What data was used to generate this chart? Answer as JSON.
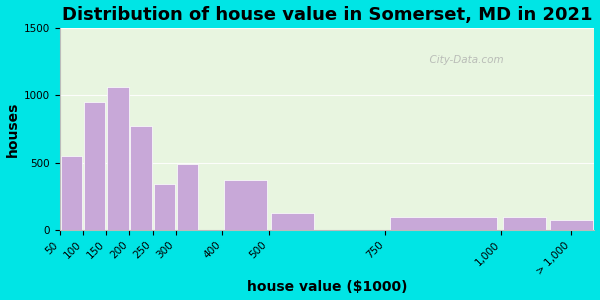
{
  "title": "Distribution of house value in Somerset, MD in 2021",
  "xlabel": "house value ($1000)",
  "ylabel": "houses",
  "bar_labels": [
    "50",
    "100",
    "150",
    "200",
    "250",
    "300",
    "400",
    "500",
    "750",
    "1,000",
    "> 1,000"
  ],
  "bar_left_edges": [
    50,
    100,
    150,
    200,
    250,
    300,
    400,
    500,
    750,
    1000,
    1100
  ],
  "bar_widths": [
    50,
    50,
    50,
    50,
    50,
    50,
    100,
    100,
    250,
    100,
    100
  ],
  "bar_values": [
    550,
    950,
    1060,
    770,
    340,
    490,
    370,
    130,
    100,
    100,
    75
  ],
  "bar_color": "#c8a8d8",
  "bar_edge_color": "#ffffff",
  "ylim": [
    0,
    1500
  ],
  "yticks": [
    0,
    500,
    1000,
    1500
  ],
  "xlim": [
    50,
    1200
  ],
  "xtick_positions": [
    50,
    100,
    150,
    200,
    250,
    300,
    400,
    500,
    750,
    1000,
    1150
  ],
  "xtick_labels": [
    "50",
    "100",
    "150",
    "200",
    "250",
    "300",
    "400",
    "500",
    "750",
    "1,000",
    "> 1,000"
  ],
  "plot_bg_color_top": "#e8f5e0",
  "plot_bg_color": "#e8f5e0",
  "outer_bg_color": "#00e5e5",
  "title_fontsize": 13,
  "axis_label_fontsize": 10,
  "tick_fontsize": 7.5,
  "watermark": "  City-Data.com"
}
